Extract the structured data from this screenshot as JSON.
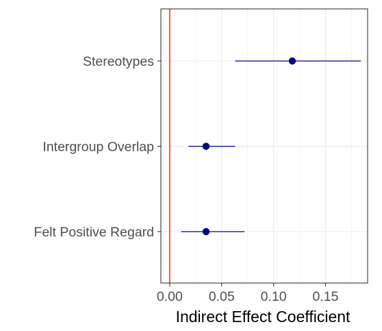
{
  "chart_data": {
    "type": "scatter",
    "subtype": "forest-plot",
    "xlabel": "Indirect Effect Coefficient",
    "ylabel": "",
    "xlim": [
      -0.0085,
      0.1905
    ],
    "xticks": [
      0.0,
      0.05,
      0.1,
      0.15
    ],
    "xtick_labels": [
      "0.00",
      "0.05",
      "0.10",
      "0.15"
    ],
    "categories": [
      "Stereotypes",
      "Intergroup Overlap",
      "Felt Positive Regard"
    ],
    "series": [
      {
        "points": [
          {
            "label": "Stereotypes",
            "estimate": 0.118,
            "ci_low": 0.063,
            "ci_high": 0.184
          },
          {
            "label": "Intergroup Overlap",
            "estimate": 0.035,
            "ci_low": 0.018,
            "ci_high": 0.063
          },
          {
            "label": "Felt Positive Regard",
            "estimate": 0.035,
            "ci_low": 0.011,
            "ci_high": 0.072
          }
        ]
      }
    ],
    "reference_line": {
      "x": 0.0,
      "color": "#f25c3c"
    },
    "grid": true,
    "legend": "none",
    "colors": {
      "point": "#00008b",
      "ci_line": "#00008b",
      "grid": "#ebebeb",
      "panel_border": "#333333",
      "axis_text": "#4d4d4d",
      "axis_title": "#000000"
    }
  }
}
